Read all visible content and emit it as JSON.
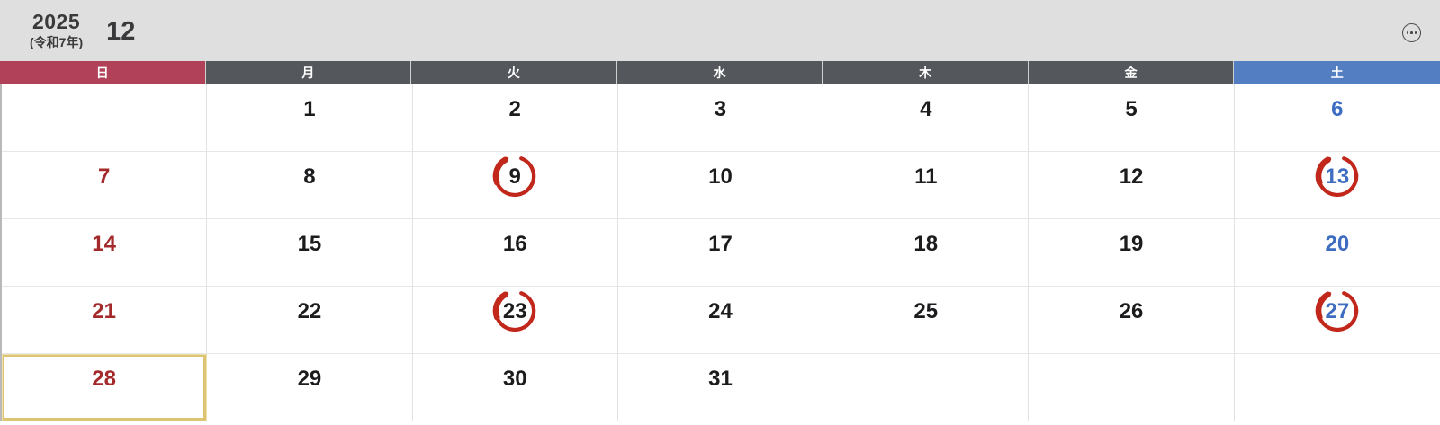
{
  "header": {
    "year": "2025",
    "era": "(令和7年)",
    "month": "12",
    "more_icon": "ellipsis-in-circle"
  },
  "weekdays": [
    {
      "label": "日",
      "type": "sunday"
    },
    {
      "label": "月",
      "type": "weekday"
    },
    {
      "label": "火",
      "type": "weekday"
    },
    {
      "label": "水",
      "type": "weekday"
    },
    {
      "label": "木",
      "type": "weekday"
    },
    {
      "label": "金",
      "type": "weekday"
    },
    {
      "label": "土",
      "type": "saturday"
    }
  ],
  "calendar": {
    "weeks": [
      [
        "",
        "1",
        "2",
        "3",
        "4",
        "5",
        "6"
      ],
      [
        "7",
        "8",
        "9",
        "10",
        "11",
        "12",
        "13"
      ],
      [
        "14",
        "15",
        "16",
        "17",
        "18",
        "19",
        "20"
      ],
      [
        "21",
        "22",
        "23",
        "24",
        "25",
        "26",
        "27"
      ],
      [
        "28",
        "29",
        "30",
        "31",
        "",
        "",
        ""
      ]
    ],
    "circled_days": [
      "9",
      "13",
      "23",
      "27"
    ],
    "selected_day": "28"
  },
  "colors": {
    "sunday_header_bg": "#B04158",
    "weekday_header_bg": "#54575C",
    "saturday_header_bg": "#537EC2",
    "sunday_text": "#A3292B",
    "saturday_text": "#3E6CC0",
    "weekday_text": "#1C1C1E",
    "circle_brush": "#C1271B",
    "selected_border": "#DCC472"
  }
}
